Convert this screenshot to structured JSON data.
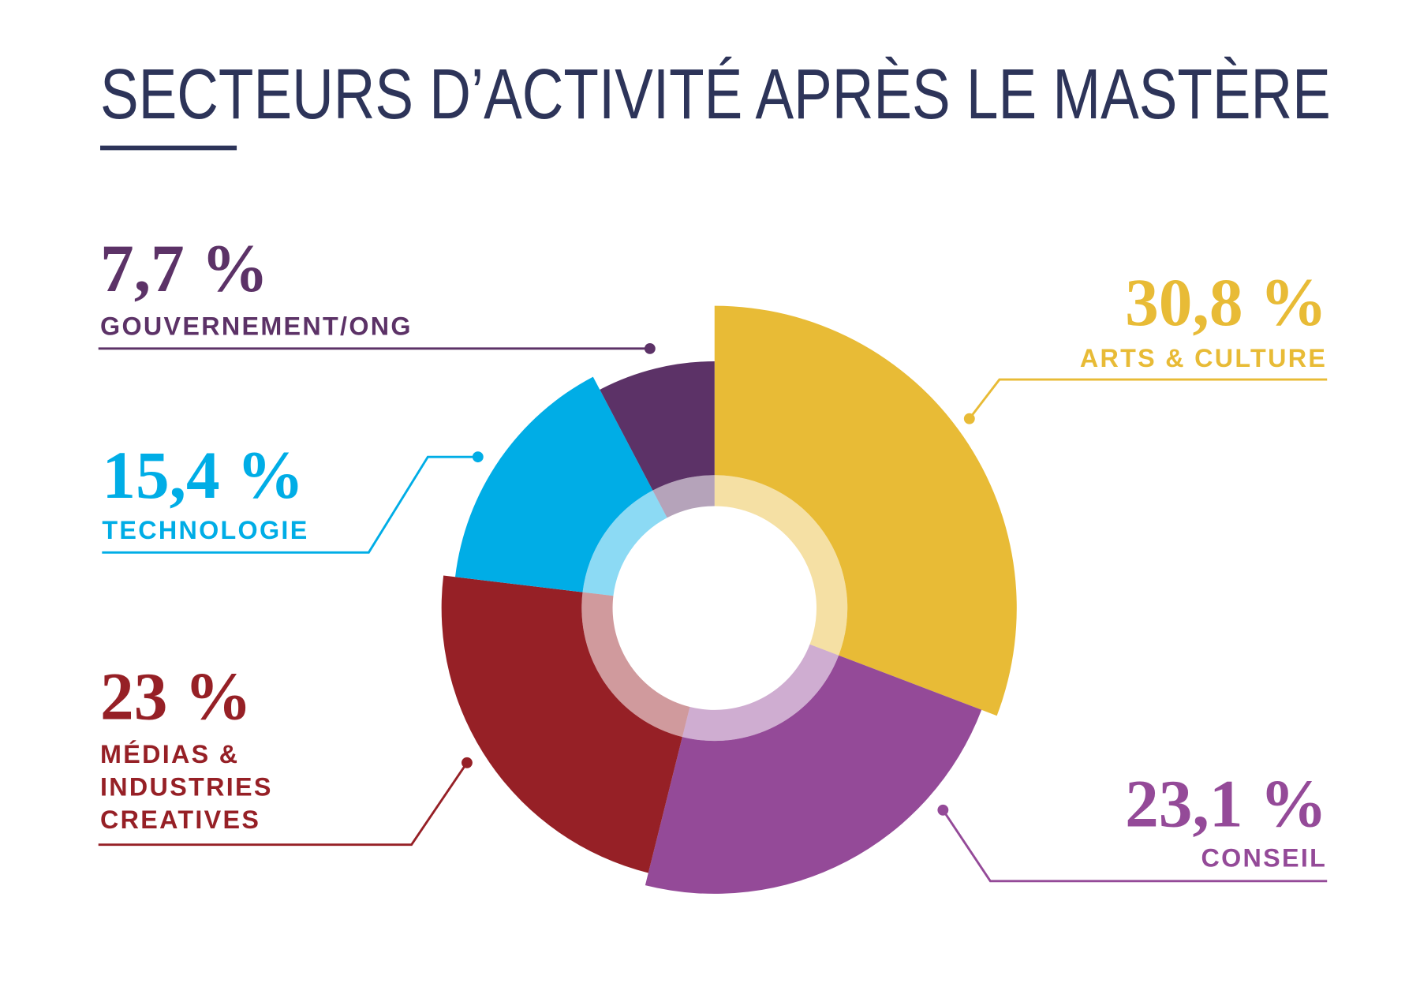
{
  "chart_data": {
    "type": "pie",
    "title": "SECTEURS D’ACTIVITÉ APRÈS LE MASTÈRE",
    "categories": [
      "ARTS & CULTURE",
      "CONSEIL",
      "MÉDIAS & INDUSTRIES CREATIVES",
      "TECHNOLOGIE",
      "GOUVERNEMENT/ONG"
    ],
    "values": [
      30.8,
      23.1,
      23,
      15.4,
      7.7
    ],
    "value_labels": [
      "30,8 %",
      "23,1 %",
      "23 %",
      "15,4 %",
      "7,7 %"
    ],
    "colors": [
      "#e8bb36",
      "#944a98",
      "#962026",
      "#00ade6",
      "#5c3267"
    ]
  }
}
